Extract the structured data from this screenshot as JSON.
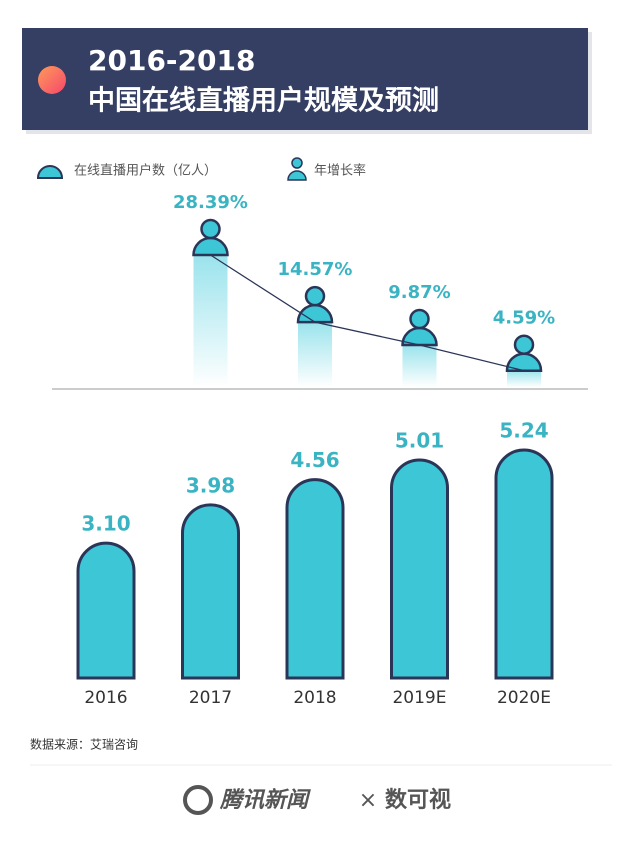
{
  "chart_data": {
    "type": "bar",
    "title": "2016-2018",
    "subtitle": "中国在线直播用户规模及预测",
    "categories": [
      "2016",
      "2017",
      "2018",
      "2019E",
      "2020E"
    ],
    "series": [
      {
        "name": "在线直播用户数（亿人）",
        "color": "#3cc6d6",
        "values": [
          3.1,
          3.98,
          4.56,
          5.01,
          5.24
        ],
        "value_labels": [
          "3.10",
          "3.98",
          "4.56",
          "5.01",
          "5.24"
        ]
      },
      {
        "name": "年增长率",
        "color": "#3cc6d6",
        "values": [
          null,
          28.39,
          14.57,
          9.87,
          4.59
        ],
        "value_labels": [
          null,
          "28.39%",
          "14.57%",
          "9.87%",
          "4.59%"
        ]
      }
    ],
    "source": "数据来源：艾瑞咨询",
    "footer": {
      "left": "腾讯新闻",
      "sep": "×",
      "right": "数可视"
    }
  }
}
